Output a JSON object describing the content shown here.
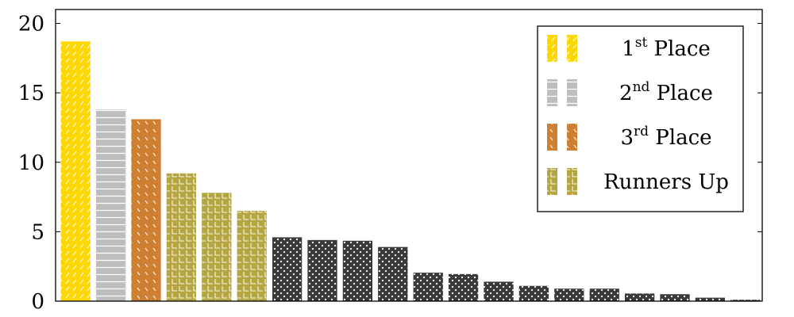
{
  "chart_data": {
    "type": "bar",
    "title": "",
    "xlabel": "",
    "ylabel": "",
    "ylim": [
      0,
      21
    ],
    "yticks": [
      0,
      5,
      10,
      15,
      20
    ],
    "grid": false,
    "legend_position": "top-right",
    "bars": [
      {
        "value": 18.7,
        "series": 0
      },
      {
        "value": 13.8,
        "series": 1
      },
      {
        "value": 13.1,
        "series": 2
      },
      {
        "value": 9.2,
        "series": 3
      },
      {
        "value": 7.8,
        "series": 3
      },
      {
        "value": 6.5,
        "series": 3
      },
      {
        "value": 4.6,
        "series": 4
      },
      {
        "value": 4.4,
        "series": 4
      },
      {
        "value": 4.35,
        "series": 4
      },
      {
        "value": 3.9,
        "series": 4
      },
      {
        "value": 2.05,
        "series": 4
      },
      {
        "value": 1.95,
        "series": 4
      },
      {
        "value": 1.4,
        "series": 4
      },
      {
        "value": 1.1,
        "series": 4
      },
      {
        "value": 0.9,
        "series": 4
      },
      {
        "value": 0.9,
        "series": 4
      },
      {
        "value": 0.55,
        "series": 4
      },
      {
        "value": 0.5,
        "series": 4
      },
      {
        "value": 0.25,
        "series": 4
      },
      {
        "value": 0.1,
        "series": 4
      }
    ],
    "series": [
      {
        "name": "1st Place",
        "ordinal": "1",
        "suffix": "st",
        "rest": " Place",
        "color": "#FFD700",
        "pattern": "diagonal"
      },
      {
        "name": "2nd Place",
        "ordinal": "2",
        "suffix": "nd",
        "rest": " Place",
        "color": "#BDBDBD",
        "pattern": "horizontal"
      },
      {
        "name": "3rd Place",
        "ordinal": "3",
        "suffix": "rd",
        "rest": " Place",
        "color": "#CD7F32",
        "pattern": "backslash"
      },
      {
        "name": "Runners Up",
        "ordinal": "Runners Up",
        "suffix": "",
        "rest": "",
        "color": "#B5A642",
        "pattern": "grid"
      },
      {
        "name": "",
        "color": "#3a3a3a",
        "pattern": "dots"
      }
    ]
  }
}
